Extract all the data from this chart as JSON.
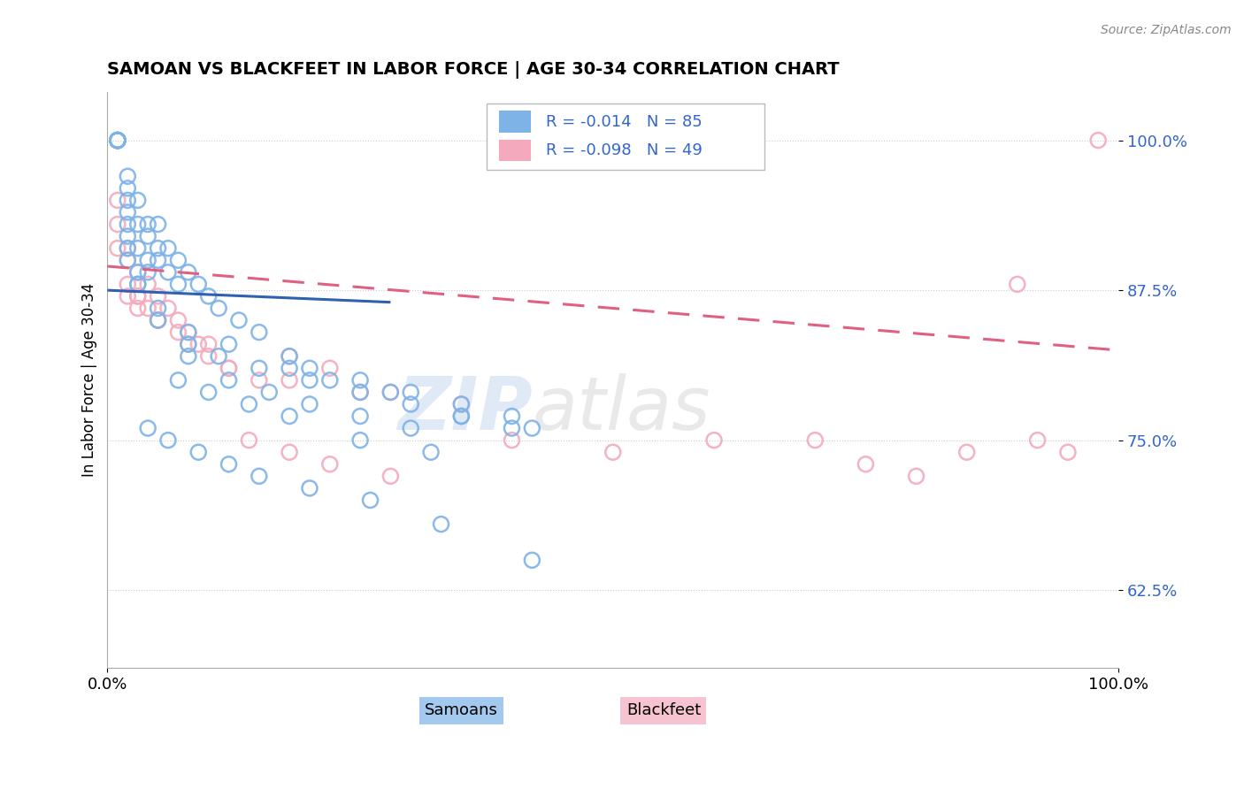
{
  "title": "SAMOAN VS BLACKFEET IN LABOR FORCE | AGE 30-34 CORRELATION CHART",
  "source_text": "Source: ZipAtlas.com",
  "ylabel": "In Labor Force | Age 30-34",
  "xlim": [
    0.0,
    1.0
  ],
  "ylim": [
    0.56,
    1.04
  ],
  "yticks": [
    0.625,
    0.75,
    0.875,
    1.0
  ],
  "ytick_labels": [
    "62.5%",
    "75.0%",
    "87.5%",
    "100.0%"
  ],
  "blue_color": "#7EB3E8",
  "pink_color": "#F4AABC",
  "blue_line_color": "#3060B0",
  "pink_line_color": "#E06080",
  "watermark_zip": "ZIP",
  "watermark_atlas": "atlas",
  "samoans_x": [
    0.01,
    0.01,
    0.01,
    0.01,
    0.01,
    0.01,
    0.01,
    0.01,
    0.01,
    0.01,
    0.02,
    0.02,
    0.02,
    0.02,
    0.02,
    0.02,
    0.02,
    0.02,
    0.03,
    0.03,
    0.03,
    0.03,
    0.03,
    0.04,
    0.04,
    0.04,
    0.04,
    0.05,
    0.05,
    0.05,
    0.06,
    0.06,
    0.07,
    0.07,
    0.08,
    0.09,
    0.1,
    0.11,
    0.13,
    0.15,
    0.18,
    0.2,
    0.25,
    0.3,
    0.35,
    0.4,
    0.03,
    0.05,
    0.08,
    0.12,
    0.18,
    0.22,
    0.28,
    0.35,
    0.42,
    0.05,
    0.08,
    0.11,
    0.15,
    0.2,
    0.25,
    0.3,
    0.35,
    0.4,
    0.08,
    0.12,
    0.16,
    0.2,
    0.25,
    0.3,
    0.07,
    0.1,
    0.14,
    0.18,
    0.25,
    0.32,
    0.04,
    0.06,
    0.09,
    0.12,
    0.15,
    0.2,
    0.26,
    0.33,
    0.42
  ],
  "samoans_y": [
    1.0,
    1.0,
    1.0,
    1.0,
    1.0,
    1.0,
    1.0,
    1.0,
    1.0,
    1.0,
    0.97,
    0.96,
    0.95,
    0.94,
    0.93,
    0.92,
    0.91,
    0.9,
    0.95,
    0.93,
    0.91,
    0.89,
    0.88,
    0.93,
    0.92,
    0.9,
    0.89,
    0.93,
    0.91,
    0.9,
    0.91,
    0.89,
    0.9,
    0.88,
    0.89,
    0.88,
    0.87,
    0.86,
    0.85,
    0.84,
    0.82,
    0.81,
    0.8,
    0.79,
    0.78,
    0.77,
    0.88,
    0.86,
    0.84,
    0.83,
    0.81,
    0.8,
    0.79,
    0.77,
    0.76,
    0.85,
    0.83,
    0.82,
    0.81,
    0.8,
    0.79,
    0.78,
    0.77,
    0.76,
    0.82,
    0.8,
    0.79,
    0.78,
    0.77,
    0.76,
    0.8,
    0.79,
    0.78,
    0.77,
    0.75,
    0.74,
    0.76,
    0.75,
    0.74,
    0.73,
    0.72,
    0.71,
    0.7,
    0.68,
    0.65
  ],
  "blackfeet_x": [
    0.01,
    0.01,
    0.01,
    0.02,
    0.02,
    0.02,
    0.02,
    0.03,
    0.03,
    0.04,
    0.04,
    0.05,
    0.06,
    0.07,
    0.08,
    0.09,
    0.1,
    0.12,
    0.15,
    0.18,
    0.22,
    0.28,
    0.35,
    0.4,
    0.5,
    0.6,
    0.7,
    0.75,
    0.8,
    0.85,
    0.9,
    0.92,
    0.95,
    0.98,
    0.03,
    0.05,
    0.08,
    0.12,
    0.18,
    0.25,
    0.03,
    0.05,
    0.07,
    0.1,
    0.14,
    0.18,
    0.22,
    0.28
  ],
  "blackfeet_y": [
    0.95,
    0.93,
    0.91,
    0.91,
    0.9,
    0.88,
    0.87,
    0.89,
    0.87,
    0.88,
    0.86,
    0.87,
    0.86,
    0.85,
    0.84,
    0.83,
    0.82,
    0.81,
    0.8,
    0.82,
    0.81,
    0.79,
    0.78,
    0.75,
    0.74,
    0.75,
    0.75,
    0.73,
    0.72,
    0.74,
    0.88,
    0.75,
    0.74,
    1.0,
    0.87,
    0.85,
    0.83,
    0.81,
    0.8,
    0.79,
    0.86,
    0.85,
    0.84,
    0.83,
    0.75,
    0.74,
    0.73,
    0.72
  ]
}
